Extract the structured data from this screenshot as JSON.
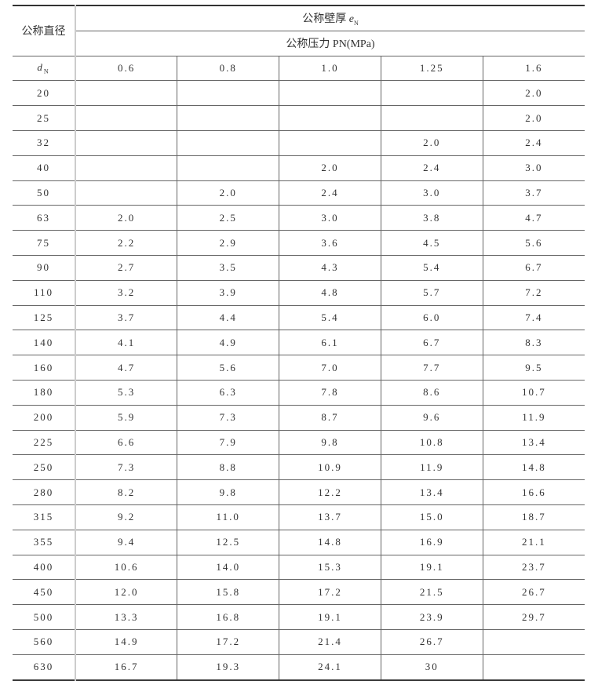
{
  "header": {
    "diameter_label": "公称直径",
    "thickness_label": "公称壁厚",
    "thickness_symbol": "e",
    "thickness_sub": "N",
    "pressure_label": "公称压力 PN(MPa)",
    "dn_symbol": "d",
    "dn_sub": "N",
    "pressures": [
      "0.6",
      "0.8",
      "1.0",
      "1.25",
      "1.6"
    ]
  },
  "rows": [
    [
      "20",
      "",
      "",
      "",
      "",
      "2.0"
    ],
    [
      "25",
      "",
      "",
      "",
      "",
      "2.0"
    ],
    [
      "32",
      "",
      "",
      "",
      "2.0",
      "2.4"
    ],
    [
      "40",
      "",
      "",
      "2.0",
      "2.4",
      "3.0"
    ],
    [
      "50",
      "",
      "2.0",
      "2.4",
      "3.0",
      "3.7"
    ],
    [
      "63",
      "2.0",
      "2.5",
      "3.0",
      "3.8",
      "4.7"
    ],
    [
      "75",
      "2.2",
      "2.9",
      "3.6",
      "4.5",
      "5.6"
    ],
    [
      "90",
      "2.7",
      "3.5",
      "4.3",
      "5.4",
      "6.7"
    ],
    [
      "110",
      "3.2",
      "3.9",
      "4.8",
      "5.7",
      "7.2"
    ],
    [
      "125",
      "3.7",
      "4.4",
      "5.4",
      "6.0",
      "7.4"
    ],
    [
      "140",
      "4.1",
      "4.9",
      "6.1",
      "6.7",
      "8.3"
    ],
    [
      "160",
      "4.7",
      "5.6",
      "7.0",
      "7.7",
      "9.5"
    ],
    [
      "180",
      "5.3",
      "6.3",
      "7.8",
      "8.6",
      "10.7"
    ],
    [
      "200",
      "5.9",
      "7.3",
      "8.7",
      "9.6",
      "11.9"
    ],
    [
      "225",
      "6.6",
      "7.9",
      "9.8",
      "10.8",
      "13.4"
    ],
    [
      "250",
      "7.3",
      "8.8",
      "10.9",
      "11.9",
      "14.8"
    ],
    [
      "280",
      "8.2",
      "9.8",
      "12.2",
      "13.4",
      "16.6"
    ],
    [
      "315",
      "9.2",
      "11.0",
      "13.7",
      "15.0",
      "18.7"
    ],
    [
      "355",
      "9.4",
      "12.5",
      "14.8",
      "16.9",
      "21.1"
    ],
    [
      "400",
      "10.6",
      "14.0",
      "15.3",
      "19.1",
      "23.7"
    ],
    [
      "450",
      "12.0",
      "15.8",
      "17.2",
      "21.5",
      "26.7"
    ],
    [
      "500",
      "13.3",
      "16.8",
      "19.1",
      "23.9",
      "29.7"
    ],
    [
      "560",
      "14.9",
      "17.2",
      "21.4",
      "26.7",
      ""
    ],
    [
      "630",
      "16.7",
      "19.3",
      "24.1",
      "30",
      ""
    ]
  ]
}
